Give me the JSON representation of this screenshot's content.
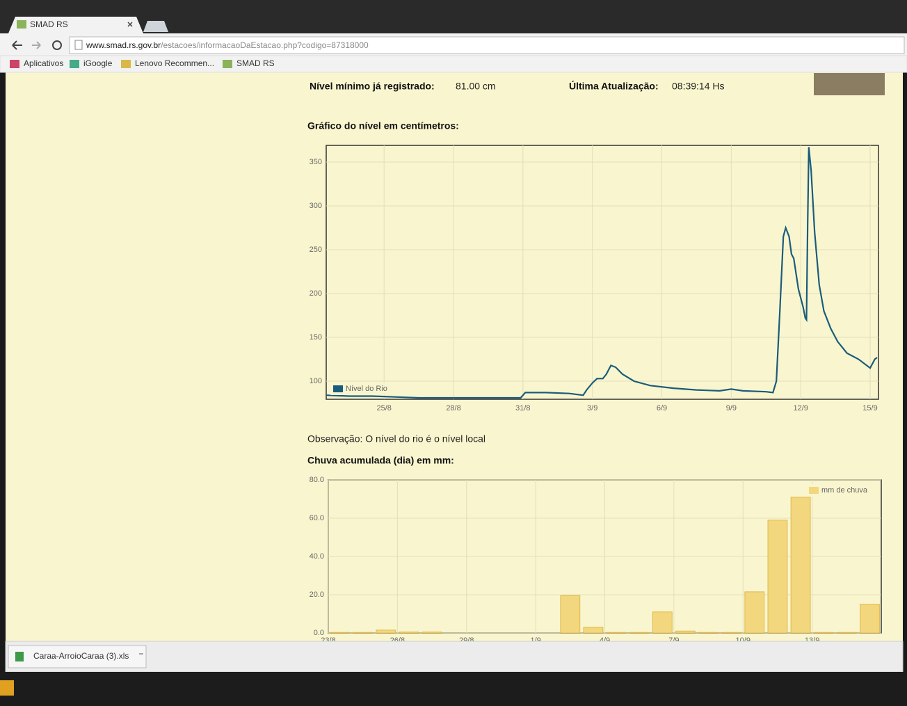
{
  "browser": {
    "tab_title": "SMAD RS",
    "url_host": "www.smad.rs.gov.br",
    "url_path": "/estacoes/informacaoDaEstacao.php?codigo=87318000",
    "bookmarks": [
      "Aplicativos",
      "iGoogle",
      "Lenovo Recommen...",
      "SMAD RS"
    ]
  },
  "station": {
    "min_level_label": "Nível mínimo já registrado:",
    "min_level_value": "81.00 cm",
    "update_label": "Última Atualização:",
    "update_value": "08:39:14 Hs"
  },
  "level_chart": {
    "heading": "Gráfico do nível em centímetros:",
    "chart_data": {
      "type": "line",
      "x": [
        22.5,
        23.5,
        24.5,
        25.5,
        26.5,
        27.5,
        29,
        30.9,
        31.1,
        32,
        33,
        33.6,
        33.75,
        34,
        34.2,
        34.45,
        34.6,
        34.8,
        35,
        35.3,
        35.8,
        36.5,
        37.5,
        38.5,
        39.5,
        40,
        40.5,
        41.5,
        41.8,
        41.95,
        42.1,
        42.25,
        42.35,
        42.5,
        42.6,
        42.7,
        42.9,
        43.1,
        43.2,
        43.25,
        43.3,
        43.35,
        43.45,
        43.6,
        43.8,
        44.0,
        44.3,
        44.6,
        45.0,
        45.5,
        46.0,
        46.2,
        46.3
      ],
      "series": [
        {
          "name": "Nível do Rio",
          "color": "#1b5c7c",
          "values": [
            84,
            83,
            83,
            82,
            81,
            81,
            81,
            81,
            87,
            87,
            86,
            84,
            90,
            98,
            103,
            103,
            108,
            118,
            116,
            108,
            100,
            95,
            92,
            90,
            89,
            91,
            89,
            88,
            87,
            100,
            180,
            265,
            275,
            265,
            245,
            240,
            205,
            185,
            172,
            170,
            280,
            367,
            340,
            270,
            210,
            180,
            160,
            145,
            132,
            125,
            115,
            125,
            127
          ]
        }
      ],
      "xlim": [
        22.5,
        46.36
      ],
      "ylim": [
        79.4,
        369
      ],
      "xticks": [
        {
          "value": 25,
          "label": "25/8"
        },
        {
          "value": 28,
          "label": "28/8"
        },
        {
          "value": 31,
          "label": "31/8"
        },
        {
          "value": 34,
          "label": "3/9"
        },
        {
          "value": 37,
          "label": "6/9"
        },
        {
          "value": 40,
          "label": "9/9"
        },
        {
          "value": 43,
          "label": "12/9"
        },
        {
          "value": 46,
          "label": "15/9"
        }
      ],
      "yticks": [
        100,
        150,
        200,
        250,
        300,
        350
      ],
      "grid": true,
      "legend": "lower left"
    }
  },
  "observation": "Observação: O nível do rio é o nível local",
  "rain_chart": {
    "heading": "Chuva acumulada (dia) em mm:",
    "chart_data": {
      "type": "bar",
      "categories": [
        "23/8",
        null,
        null,
        "26/8",
        null,
        null,
        "29/8",
        null,
        null,
        "1/9",
        null,
        null,
        "4/9",
        null,
        null,
        "7/9",
        null,
        null,
        "10/9",
        null,
        null,
        "13/9",
        null,
        null
      ],
      "series": [
        {
          "name": "mm de chuva",
          "color": "#f3d77f",
          "values": [
            0.3,
            0.3,
            1.5,
            0.5,
            0.5,
            0,
            0,
            0,
            0,
            0,
            19.5,
            3,
            0.3,
            0.3,
            11,
            1,
            0.3,
            0.3,
            21.5,
            59,
            71,
            0.3,
            0.3,
            15
          ]
        }
      ],
      "ylim": [
        0,
        80
      ],
      "yticks": [
        {
          "value": 0,
          "label": "0.0"
        },
        {
          "value": 20,
          "label": "20.0"
        },
        {
          "value": 40,
          "label": "40.0"
        },
        {
          "value": 60,
          "label": "60.0"
        },
        {
          "value": 80,
          "label": "80.0"
        }
      ],
      "grid": true,
      "legend": "upper right"
    }
  },
  "downloads": {
    "file": "Caraa-ArroioCaraa (3).xls"
  }
}
